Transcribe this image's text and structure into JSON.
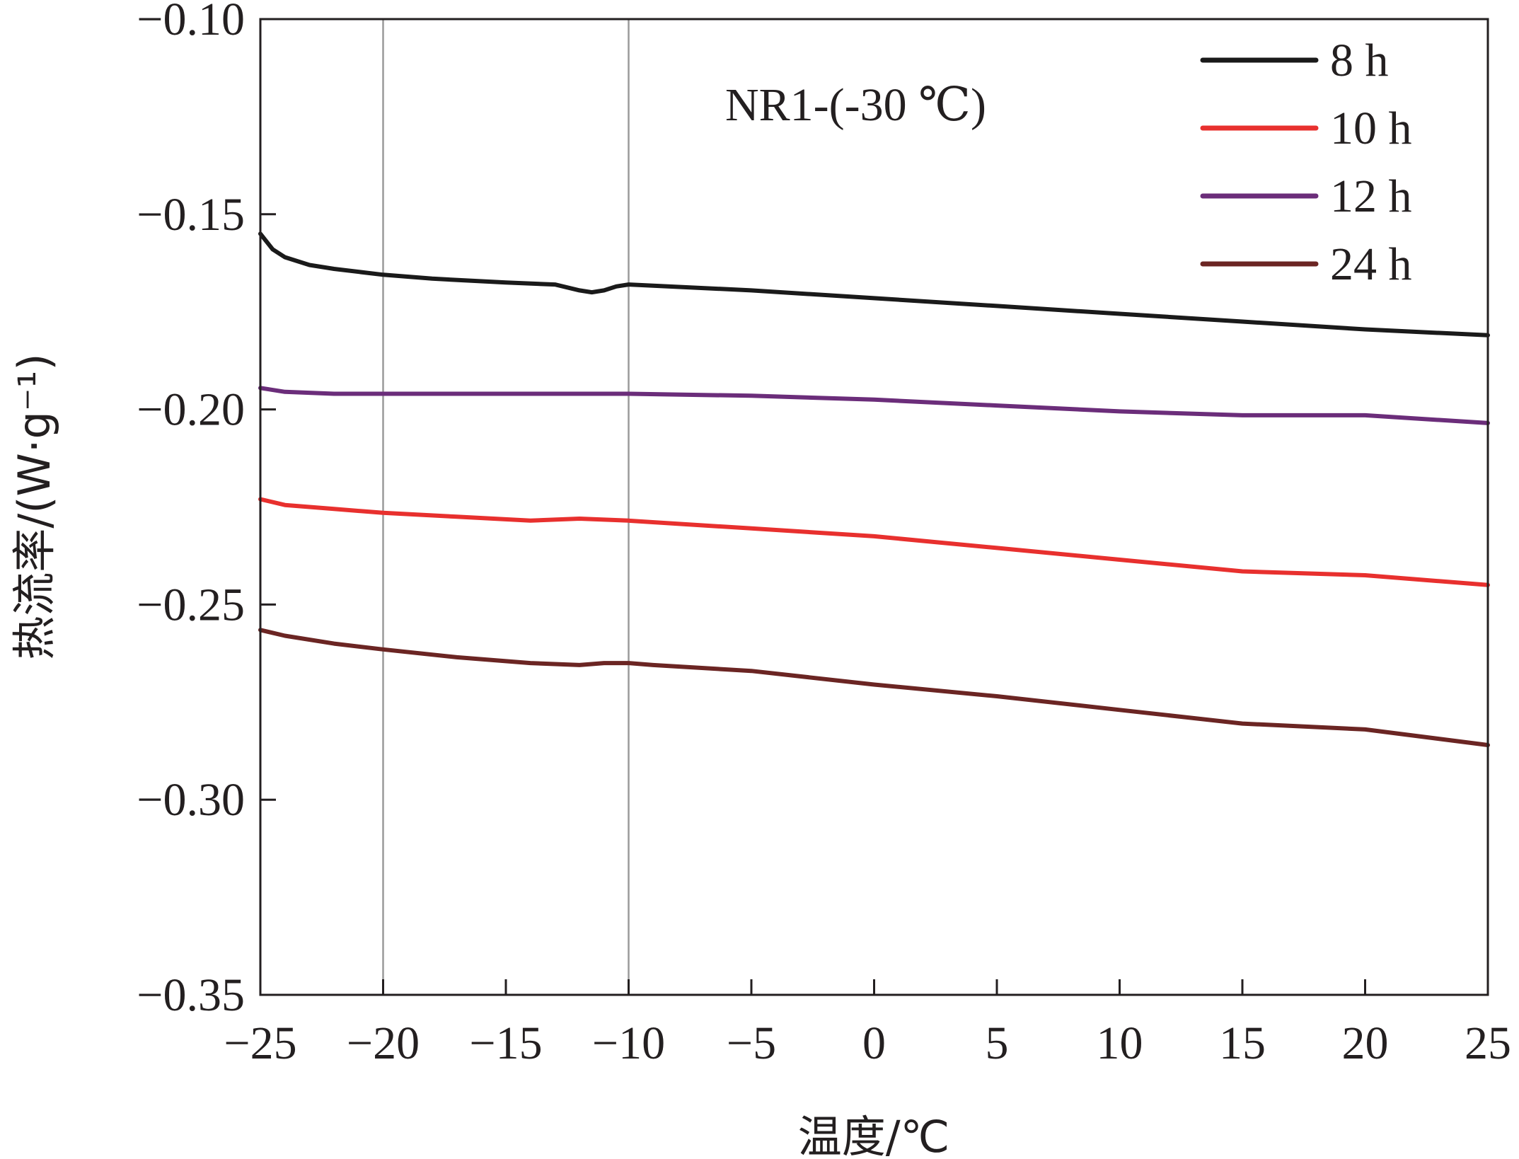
{
  "chart_data": {
    "type": "line",
    "annotation": "NR1-(-30 ℃)",
    "xlabel": "温度/℃",
    "ylabel": "热流率/(W·g⁻¹)",
    "xlim": [
      -25,
      25
    ],
    "ylim": [
      -0.35,
      -0.1
    ],
    "xticks": [
      -25,
      -20,
      -15,
      -10,
      -5,
      0,
      5,
      10,
      15,
      20,
      25
    ],
    "xtick_labels": [
      "−25",
      "−20",
      "−15",
      "−10",
      "−5",
      "0",
      "5",
      "10",
      "15",
      "20",
      "25"
    ],
    "yticks": [
      -0.1,
      -0.15,
      -0.2,
      -0.25,
      -0.3,
      -0.35
    ],
    "ytick_labels": [
      "−0.10",
      "−0.15",
      "−0.20",
      "−0.25",
      "−0.30",
      "−0.35"
    ],
    "reference_lines_x": [
      -20,
      -10
    ],
    "grid": false,
    "legend_position": "top-right",
    "series": [
      {
        "name": "8 h",
        "color": "#1a1a1a",
        "x": [
          -25,
          -24.5,
          -24,
          -23,
          -22,
          -20,
          -18,
          -15,
          -13,
          -12,
          -11.5,
          -11,
          -10.5,
          -10,
          -9,
          -5,
          0,
          5,
          10,
          15,
          20,
          25
        ],
        "y": [
          -0.155,
          -0.159,
          -0.161,
          -0.163,
          -0.164,
          -0.1655,
          -0.1665,
          -0.1675,
          -0.168,
          -0.1695,
          -0.17,
          -0.1695,
          -0.1685,
          -0.168,
          -0.1683,
          -0.1695,
          -0.1715,
          -0.1735,
          -0.1755,
          -0.1775,
          -0.1795,
          -0.181
        ]
      },
      {
        "name": "10 h",
        "color": "#e8302e",
        "x": [
          -25,
          -24,
          -22,
          -20,
          -17,
          -14,
          -12,
          -10,
          -5,
          0,
          5,
          10,
          15,
          20,
          25
        ],
        "y": [
          -0.223,
          -0.2245,
          -0.2255,
          -0.2265,
          -0.2275,
          -0.2285,
          -0.228,
          -0.2285,
          -0.2305,
          -0.2325,
          -0.2355,
          -0.2385,
          -0.2415,
          -0.2425,
          -0.245
        ]
      },
      {
        "name": "12 h",
        "color": "#6b2d7a",
        "x": [
          -25,
          -24,
          -22,
          -20,
          -15,
          -10,
          -5,
          0,
          5,
          10,
          15,
          20,
          25
        ],
        "y": [
          -0.1945,
          -0.1955,
          -0.196,
          -0.196,
          -0.196,
          -0.196,
          -0.1965,
          -0.1975,
          -0.199,
          -0.2005,
          -0.2015,
          -0.2015,
          -0.2035
        ]
      },
      {
        "name": "24 h",
        "color": "#6b2523",
        "x": [
          -25,
          -24,
          -22,
          -20,
          -17,
          -14,
          -12,
          -11,
          -10,
          -9,
          -5,
          0,
          5,
          10,
          15,
          20,
          25
        ],
        "y": [
          -0.2565,
          -0.258,
          -0.26,
          -0.2615,
          -0.2635,
          -0.265,
          -0.2655,
          -0.265,
          -0.265,
          -0.2655,
          -0.267,
          -0.2705,
          -0.2735,
          -0.277,
          -0.2805,
          -0.282,
          -0.286
        ]
      }
    ]
  }
}
